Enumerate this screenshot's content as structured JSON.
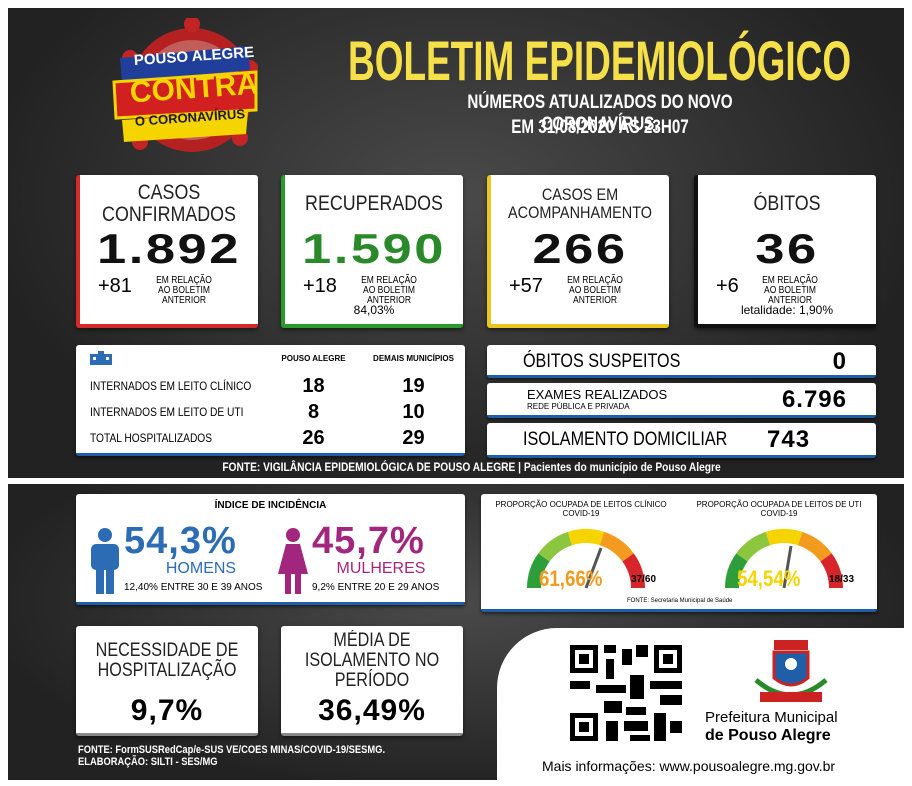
{
  "header": {
    "logo": [
      "POUSO ALEGRE",
      "CONTRA",
      "O CORONAVÍRUS"
    ],
    "title": "BOLETIM EPIDEMIOLÓGICO",
    "subtitle": [
      "NÚMEROS ATUALIZADOS DO NOVO CORONAVÍRUS.",
      "EM 31/08/2020 ÀS 23H07"
    ]
  },
  "cards": [
    {
      "title": "CASOS CONFIRMADOS",
      "value": "1.892",
      "delta": "+81",
      "note": "EM RELAÇÃO AO BOLETIM ANTERIOR"
    },
    {
      "title": "RECUPERADOS",
      "value": "1.590",
      "delta": "+18",
      "note": "EM RELAÇÃO AO BOLETIM ANTERIOR",
      "extra": "84,03%"
    },
    {
      "title": "CASOS EM ACOMPANHAMENTO",
      "value": "266",
      "delta": "+57",
      "note": "EM RELAÇÃO AO BOLETIM ANTERIOR"
    },
    {
      "title": "ÓBITOS",
      "value": "36",
      "delta": "+6",
      "note": "EM RELAÇÃO AO BOLETIM ANTERIOR",
      "extra": "letalidade: 1,90%"
    }
  ],
  "hospital": {
    "headers": [
      "POUSO ALEGRE",
      "DEMAIS MUNICÍPIOS"
    ],
    "rows": [
      [
        "INTERNADOS EM LEITO CLÍNICO",
        "18",
        "19"
      ],
      [
        "INTERNADOS EM LEITO DE UTI",
        "8",
        "10"
      ],
      [
        "TOTAL HOSPITALIZADOS",
        "26",
        "29"
      ]
    ]
  },
  "panels": [
    {
      "label": "ÓBITOS SUSPEITOS",
      "value": "0"
    },
    {
      "label": "EXAMES REALIZADOS",
      "sublabel": "REDE PÚBLICA E PRIVADA",
      "value": "6.796"
    },
    {
      "label": "ISOLAMENTO DOMICILIAR",
      "value": "743"
    }
  ],
  "source_top": "FONTE: VIGILÂNCIA EPIDEMIOLÓGICA DE POUSO ALEGRE | Pacientes do município de Pouso Alegre",
  "incidence": {
    "title": "ÍNDICE DE INCIDÊNCIA",
    "men": {
      "value": "54,3%",
      "label": "HOMENS",
      "note": "12,40% ENTRE 30 E 39 ANOS"
    },
    "women": {
      "value": "45,7%",
      "label": "MULHERES",
      "note": "9,2% ENTRE 20 E 29 ANOS"
    }
  },
  "gauges": {
    "items": [
      {
        "title": "PROPORÇÃO OCUPADA DE LEITOS CLÍNICO COVID-19",
        "value": "61,66%",
        "ratio": "37/60"
      },
      {
        "title": "PROPORÇÃO OCUPADA DE LEITOS DE UTI COVID-19",
        "value": "54,54%",
        "ratio": "18/33"
      }
    ],
    "source": "FONTE: Secretaria Municipal de Saúde"
  },
  "bottom_cards": [
    {
      "title": "NECESSIDADE DE HOSPITALIZAÇÃO",
      "value": "9,7%"
    },
    {
      "title": "MÉDIA DE ISOLAMENTO NO PERÍODO",
      "value": "36,49%"
    }
  ],
  "source_bottom": [
    "FONTE: FormSUSRedCap/e-SUS VE/COES MINAS/COVID-19/SESMG.",
    "ELABORAÇÃO: SILTI - SES/MG"
  ],
  "city": {
    "name": [
      "Prefeitura Municipal",
      "de Pouso Alegre"
    ],
    "more": "Mais informações: www.pousoalegre.mg.gov.br"
  }
}
